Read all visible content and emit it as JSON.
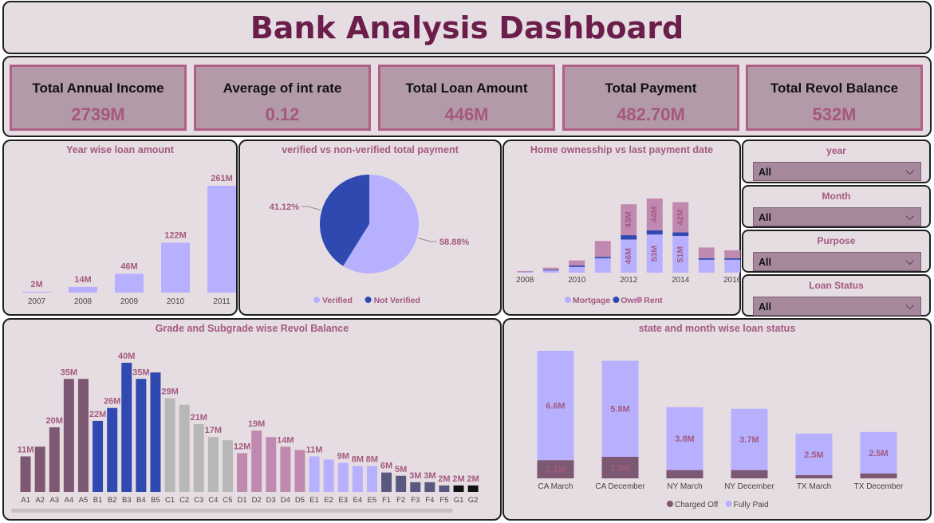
{
  "title": "Bank Analysis Dashboard",
  "kpis": [
    {
      "label": "Total Annual Income",
      "value": "2739M"
    },
    {
      "label": "Average of int rate",
      "value": "0.12"
    },
    {
      "label": "Total Loan Amount",
      "value": "446M"
    },
    {
      "label": "Total Payment",
      "value": "482.70M"
    },
    {
      "label": "Total Revol Balance",
      "value": "532M"
    }
  ],
  "slicers": [
    {
      "label": "year",
      "value": "All"
    },
    {
      "label": "Month",
      "value": "All"
    },
    {
      "label": "Purpose",
      "value": "All"
    },
    {
      "label": "Loan Status",
      "value": "All"
    }
  ],
  "colors": {
    "lavender": "#b7b0ff",
    "blue": "#2f49b1",
    "rose": "#c08ab0",
    "dark_mauve": "#7c5873",
    "gray": "#b7b7b7",
    "slate": "#59597f",
    "black": "#111111",
    "title": "#6b1e4b",
    "accent_text": "#a35a80"
  },
  "chart_data": [
    {
      "id": "year_loan",
      "type": "bar",
      "title": "Year wise loan amount",
      "categories": [
        "2007",
        "2008",
        "2009",
        "2010",
        "2011"
      ],
      "values": [
        2,
        14,
        46,
        122,
        261
      ],
      "labels": [
        "2M",
        "14M",
        "46M",
        "122M",
        "261M"
      ],
      "ylim": [
        0,
        261
      ]
    },
    {
      "id": "verified_pie",
      "type": "pie",
      "title": "verified vs non-verified total payment",
      "slices": [
        {
          "name": "Verified",
          "value": 58.88,
          "label": "58.88%",
          "color": "#b7b0ff"
        },
        {
          "name": "Not Verified",
          "value": 41.12,
          "label": "41.12%",
          "color": "#2f49b1"
        }
      ],
      "legend": "bottom"
    },
    {
      "id": "home_ownership",
      "type": "bar",
      "stacked": true,
      "title": "Home ownesship vs last payment date",
      "x": [
        2008,
        2009,
        2010,
        2011,
        2012,
        2013,
        2014,
        2015,
        2016
      ],
      "tick_labels": [
        "2008",
        "2010",
        "2012",
        "2014",
        "2016"
      ],
      "tick_years": [
        2008,
        2010,
        2012,
        2014,
        2016
      ],
      "series": [
        {
          "name": "Mortgage",
          "color": "#b7b0ff",
          "values": [
            1,
            3,
            8,
            20,
            46,
            53,
            51,
            18,
            18
          ],
          "labels": [
            "",
            "",
            "",
            "",
            "46M",
            "53M",
            "51M",
            "",
            ""
          ]
        },
        {
          "name": "Own",
          "color": "#2f49b1",
          "values": [
            0.3,
            1,
            2,
            2,
            6,
            6,
            5,
            2,
            2
          ],
          "labels": [
            "",
            "",
            "",
            "",
            "",
            "",
            "",
            "",
            ""
          ]
        },
        {
          "name": "Rent",
          "color": "#c08ab0",
          "values": [
            1,
            3,
            7,
            22,
            43,
            44,
            42,
            15,
            11
          ],
          "labels": [
            "",
            "",
            "",
            "",
            "43M",
            "44M",
            "42M",
            "",
            ""
          ]
        }
      ],
      "ylim": [
        0,
        103
      ],
      "legend": "bottom"
    },
    {
      "id": "grade_revol",
      "type": "bar",
      "title": "Grade and Subgrade wise Revol Balance",
      "categories": [
        "A1",
        "A2",
        "A3",
        "A4",
        "A5",
        "B1",
        "B2",
        "B3",
        "B4",
        "B5",
        "C1",
        "C2",
        "C3",
        "C4",
        "C5",
        "D1",
        "D2",
        "D3",
        "D4",
        "D5",
        "E1",
        "E2",
        "E3",
        "E4",
        "E5",
        "F1",
        "F2",
        "F3",
        "F4",
        "F5",
        "G1",
        "G2"
      ],
      "values": [
        11,
        14,
        20,
        35,
        35,
        22,
        26,
        40,
        35,
        37,
        29,
        27,
        21,
        17,
        16,
        12,
        19,
        17,
        14,
        13,
        11,
        10,
        9,
        8,
        8,
        6,
        5,
        3,
        3,
        2,
        2,
        2
      ],
      "labels": [
        "11M",
        "",
        "20M",
        "35M",
        "",
        "22M",
        "26M",
        "40M",
        "35M",
        "",
        "29M",
        "",
        "21M",
        "17M",
        "",
        "12M",
        "19M",
        "",
        "14M",
        "",
        "11M",
        "",
        "9M",
        "8M",
        "8M",
        "6M",
        "5M",
        "3M",
        "3M",
        "2M",
        "2M",
        "2M"
      ],
      "colors": [
        "#7c5873",
        "#7c5873",
        "#7c5873",
        "#7c5873",
        "#7c5873",
        "#2f49b1",
        "#2f49b1",
        "#2f49b1",
        "#2f49b1",
        "#2f49b1",
        "#b7b7b7",
        "#b7b7b7",
        "#b7b7b7",
        "#b7b7b7",
        "#b7b7b7",
        "#c08ab0",
        "#c08ab0",
        "#c08ab0",
        "#c08ab0",
        "#c08ab0",
        "#b7b0ff",
        "#b7b0ff",
        "#b7b0ff",
        "#b7b0ff",
        "#b7b0ff",
        "#59597f",
        "#59597f",
        "#59597f",
        "#59597f",
        "#59597f",
        "#111111",
        "#111111"
      ],
      "ylim": [
        0,
        40
      ]
    },
    {
      "id": "state_month",
      "type": "bar",
      "stacked": true,
      "title": "state and month wise loan status",
      "categories": [
        "CA March",
        "CA December",
        "NY March",
        "NY December",
        "TX March",
        "TX December"
      ],
      "series": [
        {
          "name": "Charged Off",
          "color": "#7c5873",
          "values": [
            1.1,
            1.3,
            0.5,
            0.5,
            0.2,
            0.3
          ],
          "labels": [
            "1.1M",
            "1.3M",
            "",
            "",
            "",
            ""
          ]
        },
        {
          "name": "Fully Paid",
          "color": "#b7b0ff",
          "values": [
            6.6,
            5.8,
            3.8,
            3.7,
            2.5,
            2.5
          ],
          "labels": [
            "6.6M",
            "5.8M",
            "3.8M",
            "3.7M",
            "2.5M",
            "2.5M"
          ]
        }
      ],
      "ylim": [
        0,
        7.7
      ],
      "legend": "bottom"
    }
  ]
}
